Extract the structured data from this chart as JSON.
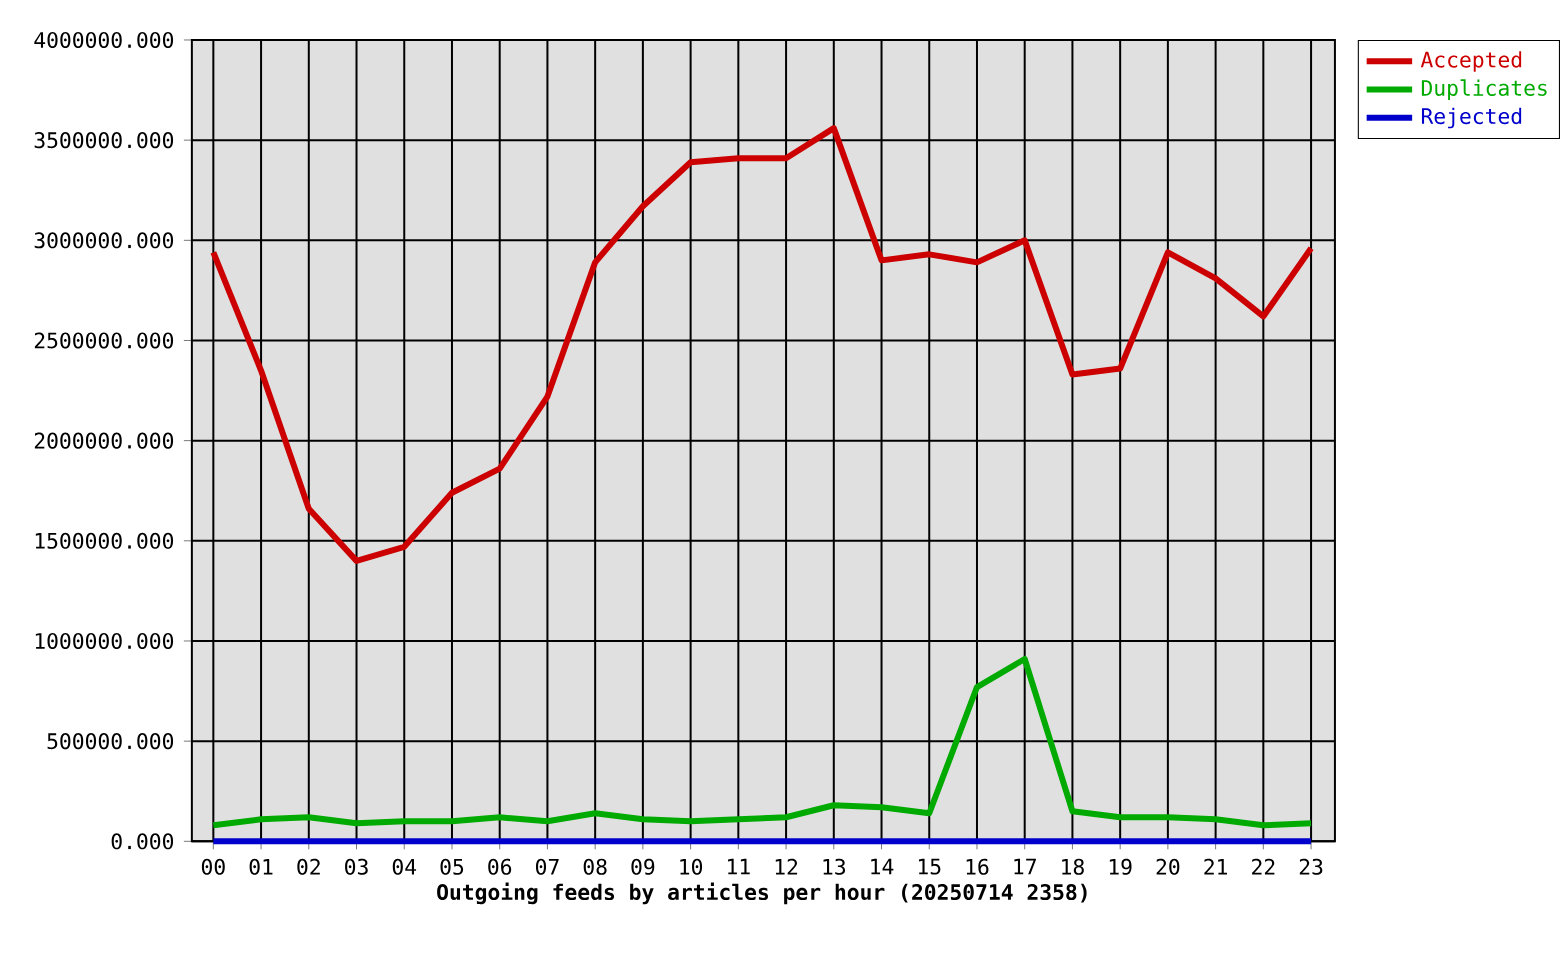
{
  "chart_data": {
    "type": "line",
    "xlabel": "Outgoing feeds by articles per hour (20250714 2358)",
    "categories": [
      "00",
      "01",
      "02",
      "03",
      "04",
      "05",
      "06",
      "07",
      "08",
      "09",
      "10",
      "11",
      "12",
      "13",
      "14",
      "15",
      "16",
      "17",
      "18",
      "19",
      "20",
      "21",
      "22",
      "23"
    ],
    "series": [
      {
        "name": "Accepted",
        "color": "#cc0000",
        "values": [
          2940000,
          2350000,
          1660000,
          1400000,
          1470000,
          1740000,
          1860000,
          2220000,
          2890000,
          3170000,
          3390000,
          3410000,
          3410000,
          3560000,
          2900000,
          2930000,
          2890000,
          3000000,
          2330000,
          2360000,
          2940000,
          2810000,
          2620000,
          2960000
        ]
      },
      {
        "name": "Duplicates",
        "color": "#00aa00",
        "values": [
          80000,
          110000,
          120000,
          90000,
          100000,
          100000,
          120000,
          100000,
          140000,
          110000,
          100000,
          110000,
          120000,
          180000,
          170000,
          140000,
          770000,
          910000,
          150000,
          120000,
          120000,
          110000,
          80000,
          90000
        ]
      },
      {
        "name": "Rejected",
        "color": "#0000cc",
        "values": [
          0,
          0,
          0,
          0,
          0,
          0,
          0,
          0,
          0,
          0,
          0,
          0,
          0,
          0,
          0,
          0,
          0,
          0,
          0,
          0,
          0,
          0,
          0,
          0
        ]
      }
    ],
    "ylim": [
      0,
      4000000
    ],
    "yticks": [
      {
        "value": 0,
        "label": "0.000"
      },
      {
        "value": 500000,
        "label": "500000.000"
      },
      {
        "value": 1000000,
        "label": "1000000.000"
      },
      {
        "value": 1500000,
        "label": "1500000.000"
      },
      {
        "value": 2000000,
        "label": "2000000.000"
      },
      {
        "value": 2500000,
        "label": "2500000.000"
      },
      {
        "value": 3000000,
        "label": "3000000.000"
      },
      {
        "value": 3500000,
        "label": "3500000.000"
      },
      {
        "value": 4000000,
        "label": "4000000.000"
      }
    ],
    "grid": true,
    "legend": "top right"
  }
}
